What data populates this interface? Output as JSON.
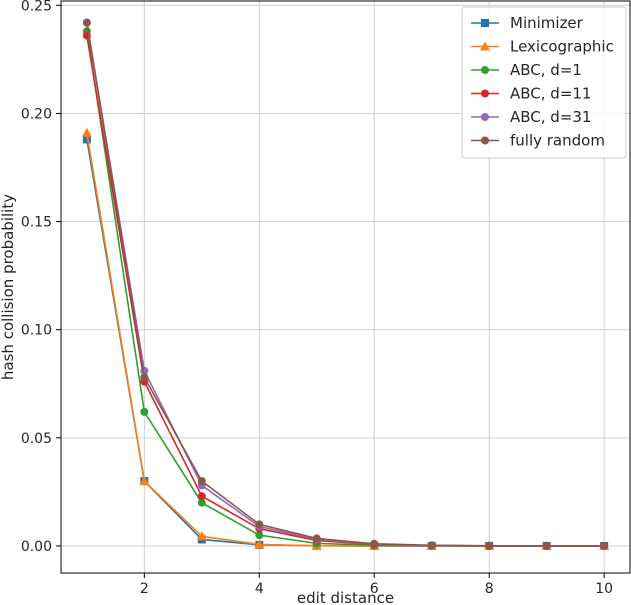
{
  "chart_data": {
    "type": "line",
    "xlabel": "edit distance",
    "ylabel": "hash collision probability",
    "xlim": [
      0.55,
      10.45
    ],
    "ylim": [
      -0.0125,
      0.252
    ],
    "xticks": [
      2,
      4,
      6,
      8,
      10
    ],
    "yticks": [
      0.0,
      0.05,
      0.1,
      0.15,
      0.2,
      0.25
    ],
    "ytick_labels": [
      "0.00",
      "0.05",
      "0.10",
      "0.15",
      "0.20",
      "0.25"
    ],
    "grid": true,
    "legend_position": "top-right",
    "x": [
      1,
      2,
      3,
      4,
      5,
      6,
      7,
      8,
      9,
      10
    ],
    "series": [
      {
        "name": "Minimizer",
        "color": "#1f77b4",
        "marker": "square",
        "values": [
          0.188,
          0.03,
          0.003,
          0.0005,
          0.0001,
          0.0,
          0.0,
          0.0,
          0.0,
          0.0
        ]
      },
      {
        "name": "Lexicographic",
        "color": "#ff7f0e",
        "marker": "triangle",
        "values": [
          0.191,
          0.03,
          0.0045,
          0.0007,
          0.0001,
          0.0,
          0.0,
          0.0,
          0.0,
          0.0
        ]
      },
      {
        "name": "ABC, d=1",
        "color": "#2ca02c",
        "marker": "circle",
        "values": [
          0.238,
          0.062,
          0.02,
          0.005,
          0.0012,
          0.0003,
          0.0001,
          0.0,
          0.0,
          0.0
        ]
      },
      {
        "name": "ABC, d=11",
        "color": "#d62728",
        "marker": "circle",
        "values": [
          0.236,
          0.076,
          0.023,
          0.008,
          0.0025,
          0.0007,
          0.0002,
          0.0,
          0.0,
          0.0
        ]
      },
      {
        "name": "ABC, d=31",
        "color": "#9467bd",
        "marker": "circle",
        "values": [
          0.242,
          0.081,
          0.028,
          0.009,
          0.003,
          0.0009,
          0.0002,
          0.0001,
          0.0,
          0.0
        ]
      },
      {
        "name": "fully random",
        "color": "#8c564b",
        "marker": "circle",
        "values": [
          0.242,
          0.078,
          0.03,
          0.01,
          0.0035,
          0.001,
          0.0003,
          0.0001,
          0.0,
          0.0
        ]
      }
    ]
  }
}
